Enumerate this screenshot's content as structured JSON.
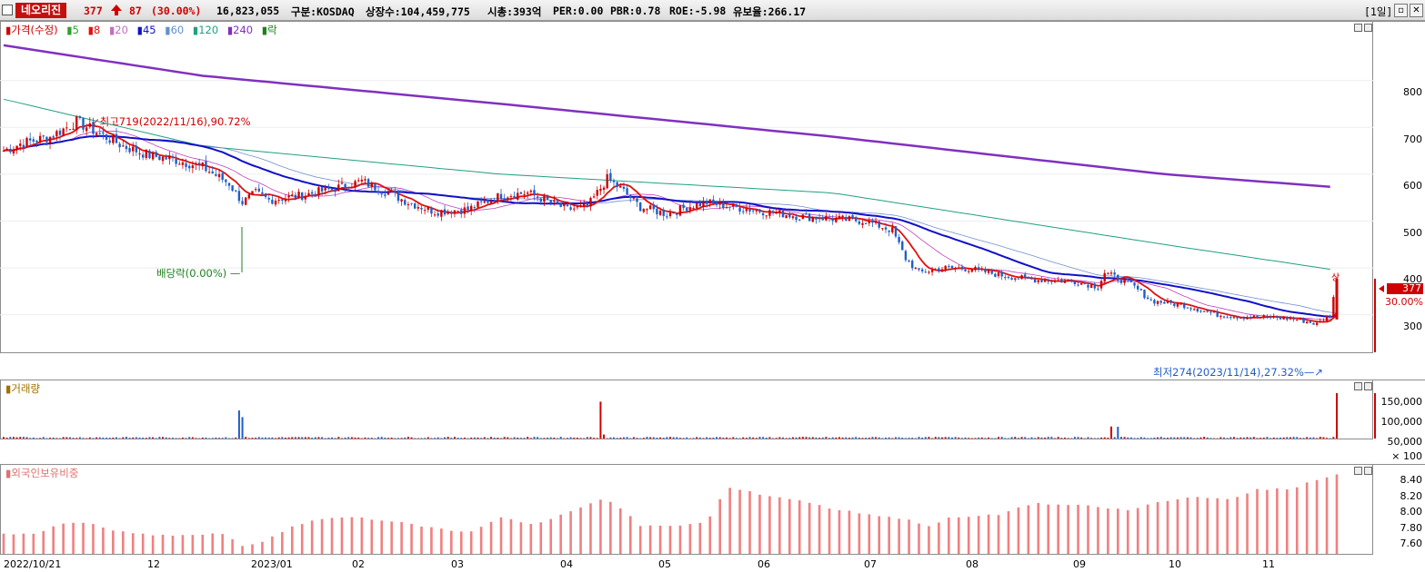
{
  "header": {
    "stock_name": "네오리진",
    "price": "377",
    "change": "87",
    "change_pct": "(30.00%)",
    "volume": "16,823,055",
    "market": "구분:KOSDAQ",
    "listed_shares": "상장수:104,459,775",
    "market_cap": "시총:393억",
    "per": "PER:0.00",
    "pbr": "PBR:0.78",
    "roe": "ROE:-5.98",
    "retention": "유보율:266.17",
    "period_button": "[1일]",
    "restore_icon": "restore-icon",
    "close_icon": "close-icon"
  },
  "colors": {
    "up": "#d00000",
    "down": "#1e5ec8",
    "ma5": "#e01010",
    "ma20": "#c040c0",
    "ma45": "#1010c8",
    "ma120": "#20a080",
    "ma240": "#8030c0",
    "foreign": "#f08080"
  },
  "price_panel": {
    "legend": {
      "price": "가격(수정)",
      "ma5": "5",
      "ma8": "8",
      "ma20": "20",
      "ma45": "45",
      "ma60": "60",
      "ma120": "120",
      "ma240": "240",
      "exdiv": "락"
    },
    "y_ticks": [
      "800",
      "700",
      "600",
      "500",
      "400",
      "300"
    ],
    "current_price_label": "377",
    "current_pct_label": "30.00%",
    "high_annotation": "최고719(2022/11/16),90.72%",
    "low_annotation": "최저274(2023/11/14),27.32%",
    "dividend_annotation": "배당락(0.00%)",
    "limit_up_mark": "상"
  },
  "volume_panel": {
    "title": "거래량",
    "y_ticks": [
      "150,000",
      "100,000",
      "50,000",
      "× 100"
    ]
  },
  "foreign_panel": {
    "title": "외국인보유비중",
    "y_ticks": [
      "8.40",
      "8.20",
      "8.00",
      "7.80",
      "7.60"
    ]
  },
  "x_axis": {
    "labels": [
      "2022/10/21",
      "12",
      "2023/01",
      "02",
      "03",
      "04",
      "05",
      "06",
      "07",
      "08",
      "09",
      "10",
      "11"
    ]
  },
  "chart_data": {
    "type": "candlestick",
    "price_anchors": [
      [
        0,
        650
      ],
      [
        5,
        665
      ],
      [
        14,
        680
      ],
      [
        22,
        712
      ],
      [
        28,
        690
      ],
      [
        36,
        660
      ],
      [
        44,
        640
      ],
      [
        52,
        630
      ],
      [
        60,
        615
      ],
      [
        68,
        580
      ],
      [
        72,
        540
      ],
      [
        76,
        560
      ],
      [
        80,
        545
      ],
      [
        90,
        555
      ],
      [
        100,
        570
      ],
      [
        108,
        585
      ],
      [
        116,
        560
      ],
      [
        122,
        540
      ],
      [
        130,
        520
      ],
      [
        140,
        525
      ],
      [
        150,
        555
      ],
      [
        158,
        560
      ],
      [
        170,
        525
      ],
      [
        176,
        530
      ],
      [
        182,
        590
      ],
      [
        186,
        570
      ],
      [
        192,
        530
      ],
      [
        200,
        515
      ],
      [
        206,
        530
      ],
      [
        212,
        540
      ],
      [
        220,
        530
      ],
      [
        230,
        520
      ],
      [
        240,
        510
      ],
      [
        250,
        505
      ],
      [
        260,
        500
      ],
      [
        268,
        480
      ],
      [
        272,
        420
      ],
      [
        276,
        390
      ],
      [
        284,
        400
      ],
      [
        292,
        398
      ],
      [
        300,
        385
      ],
      [
        310,
        375
      ],
      [
        322,
        372
      ],
      [
        330,
        360
      ],
      [
        332,
        390
      ],
      [
        340,
        365
      ],
      [
        346,
        330
      ],
      [
        356,
        320
      ],
      [
        366,
        300
      ],
      [
        374,
        295
      ],
      [
        382,
        295
      ],
      [
        390,
        290
      ],
      [
        396,
        280
      ],
      [
        400,
        300
      ],
      [
        402,
        377
      ]
    ],
    "volume_spikes": [
      [
        71,
        1050
      ],
      [
        72,
        800
      ],
      [
        180,
        1380
      ],
      [
        181,
        150
      ],
      [
        334,
        450
      ],
      [
        336,
        440
      ],
      [
        402,
        1700
      ]
    ],
    "foreign_anchors": [
      [
        0,
        7.72
      ],
      [
        10,
        7.72
      ],
      [
        18,
        7.85
      ],
      [
        26,
        7.85
      ],
      [
        34,
        7.75
      ],
      [
        44,
        7.7
      ],
      [
        56,
        7.7
      ],
      [
        66,
        7.72
      ],
      [
        72,
        7.56
      ],
      [
        78,
        7.62
      ],
      [
        86,
        7.79
      ],
      [
        96,
        7.91
      ],
      [
        106,
        7.93
      ],
      [
        118,
        7.87
      ],
      [
        130,
        7.79
      ],
      [
        140,
        7.73
      ],
      [
        150,
        7.93
      ],
      [
        160,
        7.83
      ],
      [
        170,
        7.98
      ],
      [
        180,
        8.15
      ],
      [
        184,
        8.12
      ],
      [
        192,
        7.82
      ],
      [
        200,
        7.81
      ],
      [
        212,
        7.86
      ],
      [
        218,
        8.3
      ],
      [
        222,
        8.27
      ],
      [
        230,
        8.2
      ],
      [
        240,
        8.14
      ],
      [
        250,
        8.03
      ],
      [
        260,
        7.97
      ],
      [
        272,
        7.9
      ],
      [
        280,
        7.81
      ],
      [
        284,
        7.91
      ],
      [
        300,
        7.96
      ],
      [
        310,
        8.1
      ],
      [
        326,
        8.07
      ],
      [
        340,
        8.01
      ],
      [
        346,
        8.1
      ],
      [
        360,
        8.19
      ],
      [
        370,
        8.14
      ],
      [
        378,
        8.28
      ],
      [
        388,
        8.28
      ],
      [
        394,
        8.37
      ],
      [
        402,
        8.46
      ]
    ],
    "ma_lines": {
      "ma240": [
        [
          0,
          875
        ],
        [
          60,
          810
        ],
        [
          150,
          750
        ],
        [
          250,
          680
        ],
        [
          350,
          600
        ],
        [
          402,
          572
        ]
      ],
      "ma120": [
        [
          0,
          760
        ],
        [
          60,
          660
        ],
        [
          150,
          600
        ],
        [
          250,
          560
        ],
        [
          350,
          450
        ],
        [
          402,
          395
        ]
      ]
    },
    "y_ranges": {
      "price": [
        220,
        900
      ],
      "volume": [
        0,
        1800
      ],
      "foreign": [
        7.5,
        8.55
      ]
    },
    "n_bars": 403
  }
}
